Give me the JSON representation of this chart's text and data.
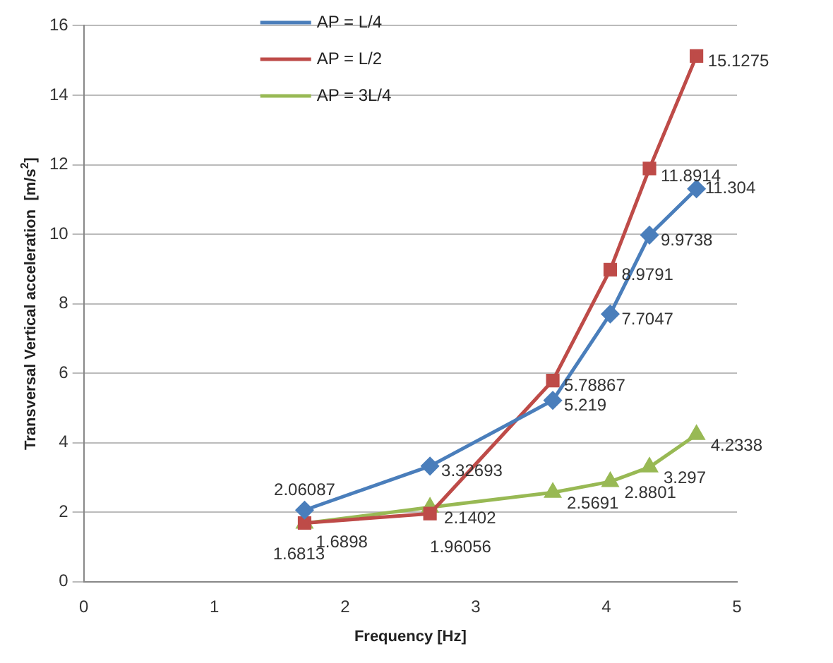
{
  "chart_data": {
    "type": "line",
    "xlabel": "Frequency [Hz]",
    "ylabel": "Transversal Vertical acceleration  [m/s$^{2}$]",
    "x": [
      1.69,
      2.65,
      3.59,
      4.03,
      4.33,
      4.69
    ],
    "series": [
      {
        "name": "AP = L/4",
        "color": "#4a7ebb",
        "marker": "diamond",
        "values": [
          2.06087,
          3.32693,
          5.219,
          7.7047,
          9.9738,
          11.304
        ]
      },
      {
        "name": "AP = L/2",
        "color": "#be4b48",
        "marker": "square",
        "values": [
          1.6898,
          1.96056,
          5.78867,
          8.9791,
          11.8914,
          15.1275
        ]
      },
      {
        "name": "AP = 3L/4",
        "color": "#98b954",
        "marker": "triangle",
        "values": [
          1.6813,
          2.1402,
          2.5691,
          2.8801,
          3.297,
          4.2338
        ]
      }
    ],
    "xlim": [
      0,
      5
    ],
    "xticks": [
      0,
      1,
      2,
      3,
      4,
      5
    ],
    "ylim": [
      0,
      16
    ],
    "yticks": [
      0,
      2,
      4,
      6,
      8,
      10,
      12,
      14,
      16
    ],
    "grid": "y",
    "legend": "top left",
    "data_labels": true
  }
}
